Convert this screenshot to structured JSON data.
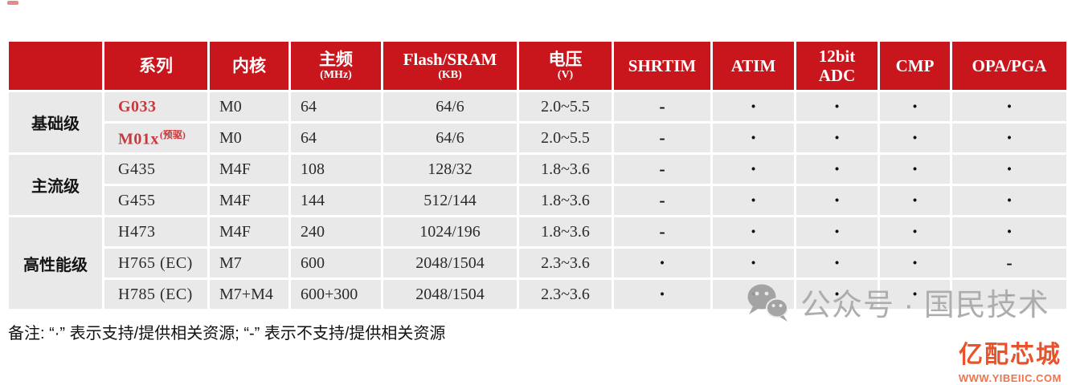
{
  "table": {
    "headers": [
      {
        "line1": ""
      },
      {
        "line1": "系列"
      },
      {
        "line1": "内核"
      },
      {
        "line1": "主频",
        "line2": "(MHz)"
      },
      {
        "line1": "Flash/SRAM",
        "line2": "(KB)"
      },
      {
        "line1": "电压",
        "line2": "(V)"
      },
      {
        "line1": "SHRTIM"
      },
      {
        "line1": "ATIM"
      },
      {
        "line1": "12bit",
        "line2": "ADC"
      },
      {
        "line1": "CMP"
      },
      {
        "line1": "OPA/PGA"
      }
    ],
    "groups": [
      {
        "label": "基础级",
        "rows": [
          {
            "series": "G033",
            "series_highlight": true,
            "core": "M0",
            "freq": "64",
            "flash_sram": "64/6",
            "voltage": "2.0~5.5",
            "shrtim": "-",
            "atim": "·",
            "adc": "·",
            "cmp": "·",
            "opa_pga": "·"
          },
          {
            "series": "M01x",
            "series_sup": "(预驱)",
            "series_highlight": true,
            "core": "M0",
            "freq": "64",
            "flash_sram": "64/6",
            "voltage": "2.0~5.5",
            "shrtim": "-",
            "atim": "·",
            "adc": "·",
            "cmp": "·",
            "opa_pga": "·"
          }
        ]
      },
      {
        "label": "主流级",
        "rows": [
          {
            "series": "G435",
            "core": "M4F",
            "freq": "108",
            "flash_sram": "128/32",
            "voltage": "1.8~3.6",
            "shrtim": "-",
            "atim": "·",
            "adc": "·",
            "cmp": "·",
            "opa_pga": "·"
          },
          {
            "series": "G455",
            "core": "M4F",
            "freq": "144",
            "flash_sram": "512/144",
            "voltage": "1.8~3.6",
            "shrtim": "-",
            "atim": "·",
            "adc": "·",
            "cmp": "·",
            "opa_pga": "·"
          }
        ]
      },
      {
        "label": "高性能级",
        "rows": [
          {
            "series": "H473",
            "core": "M4F",
            "freq": "240",
            "flash_sram": "1024/196",
            "voltage": "1.8~3.6",
            "shrtim": "-",
            "atim": "·",
            "adc": "·",
            "cmp": "·",
            "opa_pga": "·"
          },
          {
            "series": "H765 (EC)",
            "core": "M7",
            "freq": "600",
            "flash_sram": "2048/1504",
            "voltage": "2.3~3.6",
            "shrtim": "·",
            "atim": "·",
            "adc": "·",
            "cmp": "·",
            "opa_pga": "-"
          },
          {
            "series": "H785 (EC)",
            "core": "M7+M4",
            "freq": "600+300",
            "flash_sram": "2048/1504",
            "voltage": "2.3~3.6",
            "shrtim": "·",
            "atim": "·",
            "adc": "·",
            "cmp": "·",
            "opa_pga": "-"
          }
        ]
      }
    ],
    "legend": {
      "dot": "·",
      "dash": "-"
    }
  },
  "note": "备注: “·” 表示支持/提供相关资源; “-” 表示不支持/提供相关资源",
  "watermark": {
    "label": "公众号 · 国民技术",
    "icon": "wechat-icon"
  },
  "branding": {
    "name": "亿配芯城",
    "url": "WWW.YIBEIIC.COM"
  },
  "colors": {
    "header_red": "#c9161d",
    "series_highlight_red": "#c8393c",
    "row_gray": "#e9e9e9",
    "watermark_gray": "#a8a8a8",
    "brand_orange": "#e8532c"
  }
}
